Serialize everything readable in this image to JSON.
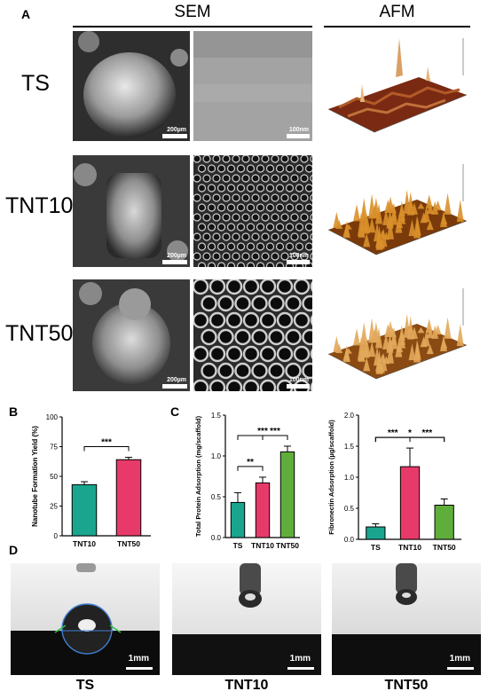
{
  "panel_letters": {
    "a": "A",
    "b": "B",
    "c": "C",
    "d": "D"
  },
  "panel_a": {
    "header_sem": "SEM",
    "header_afm": "AFM",
    "rows": [
      {
        "label": "TS",
        "scale_low": "200µm",
        "scale_high": "100nm"
      },
      {
        "label": "TNT10",
        "scale_low": "200µm",
        "scale_high": "100nm"
      },
      {
        "label": "TNT50",
        "scale_low": "200µm",
        "scale_high": "100nm"
      }
    ]
  },
  "chart_data": [
    {
      "type": "bar",
      "panel": "B",
      "categories": [
        "TNT10",
        "TNT50"
      ],
      "values": [
        43,
        64
      ],
      "errors": [
        2.5,
        2
      ],
      "colors": [
        "#1aa58f",
        "#e83a6a"
      ],
      "ylabel": "Nanotube Formation Yield (%)",
      "ylim": [
        0,
        100
      ],
      "yticks": [
        0,
        25,
        50,
        75,
        100
      ],
      "significance": [
        {
          "pair": [
            "TNT10",
            "TNT50"
          ],
          "label": "***"
        }
      ]
    },
    {
      "type": "bar",
      "panel": "C",
      "categories": [
        "TS",
        "TNT10",
        "TNT50"
      ],
      "values": [
        0.43,
        0.67,
        1.05
      ],
      "errors": [
        0.12,
        0.07,
        0.07
      ],
      "colors": [
        "#1aa58f",
        "#e83a6a",
        "#5fae3c"
      ],
      "ylabel": "Total Protein Adsorption (mg/scaffold)",
      "ylim": [
        0,
        1.5
      ],
      "yticks": [
        0.0,
        0.5,
        1.0,
        1.5
      ],
      "significance": [
        {
          "pair": [
            "TS",
            "TNT10"
          ],
          "label": "**"
        },
        {
          "pair": [
            "TNT10",
            "TNT50"
          ],
          "label": "***"
        },
        {
          "pair": [
            "TS",
            "TNT50"
          ],
          "label": "***"
        }
      ]
    },
    {
      "type": "bar",
      "panel": "C",
      "categories": [
        "TS",
        "TNT10",
        "TNT50"
      ],
      "values": [
        0.2,
        1.17,
        0.55
      ],
      "errors": [
        0.05,
        0.3,
        0.1
      ],
      "colors": [
        "#1aa58f",
        "#e83a6a",
        "#5fae3c"
      ],
      "ylabel": "Fibronectin Adsorption (µg/scaffold)",
      "ylim": [
        0,
        2.0
      ],
      "yticks": [
        0.0,
        0.5,
        1.0,
        1.5,
        2.0
      ],
      "significance": [
        {
          "pair": [
            "TS",
            "TNT10"
          ],
          "label": "***"
        },
        {
          "pair": [
            "TNT10",
            "TNT50"
          ],
          "label": "***"
        },
        {
          "pair": [
            "TS",
            "TNT50"
          ],
          "label": "*"
        }
      ]
    }
  ],
  "panel_d": {
    "images": [
      {
        "label": "TS",
        "scale": "1mm"
      },
      {
        "label": "TNT10",
        "scale": "1mm"
      },
      {
        "label": "TNT50",
        "scale": "1mm"
      }
    ]
  }
}
